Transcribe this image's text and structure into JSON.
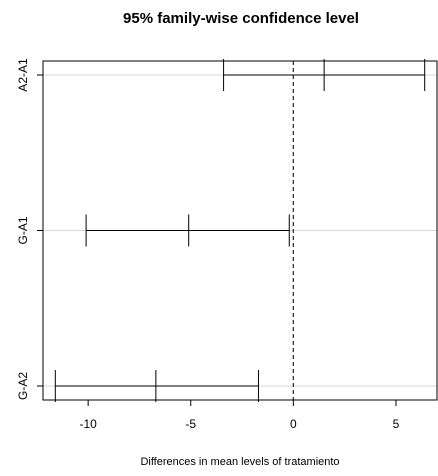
{
  "chart_data": {
    "type": "interval",
    "title": "95% family-wise confidence level",
    "xlabel": "Differences in mean levels of tratamiento",
    "ylabel": "",
    "xlim": [
      -12.2,
      7.0
    ],
    "x_ticks": [
      -10,
      -5,
      0,
      5
    ],
    "x_tick_labels": [
      "-10",
      "-5",
      "0",
      "5"
    ],
    "reference_line": 0,
    "grid": "horizontal lines at comparisons",
    "comparisons": [
      {
        "label": "A2-A1",
        "lwr": -3.4,
        "diff": 1.5,
        "upr": 6.4
      },
      {
        "label": "G-A1",
        "lwr": -10.1,
        "diff": -5.1,
        "upr": -0.2
      },
      {
        "label": "G-A2",
        "lwr": -11.6,
        "diff": -6.7,
        "upr": -1.7
      }
    ]
  }
}
